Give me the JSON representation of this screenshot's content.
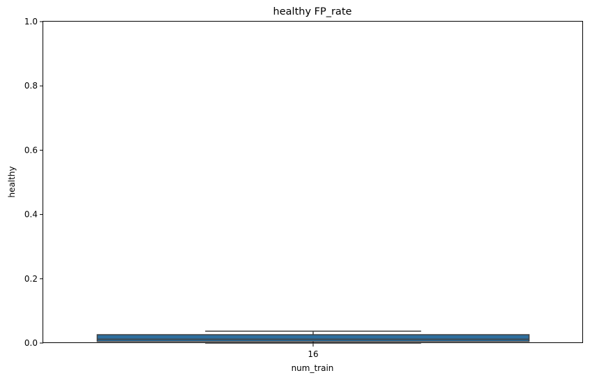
{
  "chart_data": {
    "type": "box",
    "title": "healthy FP_rate",
    "xlabel": "num_train",
    "ylabel": "healthy",
    "categories": [
      "16"
    ],
    "ylim": [
      0,
      1.0
    ],
    "yticks": [
      "0.0",
      "0.2",
      "0.4",
      "0.6",
      "0.8",
      "1.0"
    ],
    "boxes": [
      {
        "category": "16",
        "whisker_low": 0.0,
        "q1": 0.005,
        "median": 0.012,
        "q3": 0.026,
        "whisker_high": 0.037
      }
    ],
    "grid": false,
    "legend": "none"
  },
  "colors": {
    "box_fill": "#2d6e9e",
    "box_edge": "#3f3f3f"
  }
}
